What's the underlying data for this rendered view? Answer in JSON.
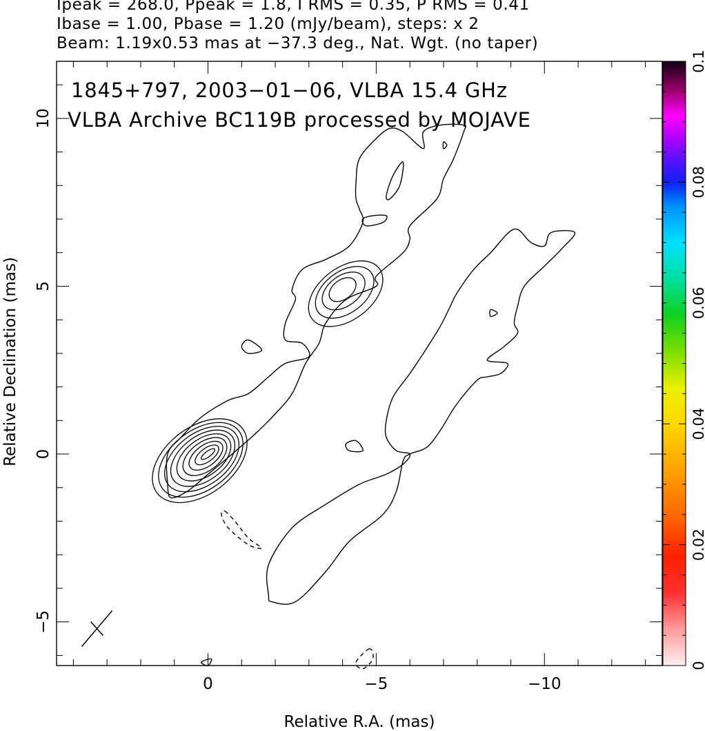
{
  "header": {
    "line1": "Ipeak = 268.0, Ppeak = 1.8, I RMS = 0.35, P RMS = 0.41",
    "line2": "Ibase = 1.00, Pbase = 1.20 (mJy/beam), steps: x 2",
    "line3": "Beam: 1.19x0.53 mas at −37.3 deg., Nat. Wgt. (no taper)"
  },
  "chart_data": {
    "type": "contour",
    "title_line1": "1845+797, 2003−01−06, VLBA 15.4 GHz",
    "title_line2": "VLBA Archive BC119B processed by MOJAVE",
    "xlabel": "Relative R.A. (mas)",
    "ylabel": "Relative Declination (mas)",
    "xlim": [
      4.5,
      -13.5
    ],
    "ylim": [
      -6.3,
      11.7
    ],
    "x_ticks": [
      0,
      -5,
      -10
    ],
    "x_tick_labels": [
      "0",
      "−5",
      "−10"
    ],
    "y_ticks": [
      -5,
      0,
      5,
      10
    ],
    "y_tick_labels": [
      "−5",
      "0",
      "5",
      "10"
    ],
    "colorbar": {
      "range": [
        0,
        0.1
      ],
      "ticks": [
        0,
        0.02,
        0.04,
        0.06,
        0.08,
        0.1
      ],
      "tick_labels": [
        "0",
        "0.02",
        "0.04",
        "0.06",
        "0.08",
        "0.1"
      ]
    },
    "beam": {
      "major_mas": 1.19,
      "minor_mas": 0.53,
      "pa_deg": -37.3,
      "center": [
        3.3,
        -5.2
      ]
    },
    "core": {
      "ra": 0,
      "dec": 0,
      "peak_mJy": 268.0,
      "n_contours": 9
    },
    "knot": {
      "ra": -4.0,
      "dec": 4.9,
      "n_contours": 4
    },
    "contours": [
      {
        "name": "jet-main",
        "closed": true,
        "pts": [
          [
            1.2,
            -0.9
          ],
          [
            1.1,
            -1.3
          ],
          [
            0.6,
            -1.1
          ],
          [
            0,
            -0.6
          ],
          [
            -0.6,
            -0.1
          ],
          [
            -1.4,
            0.6
          ],
          [
            -2.0,
            1.2
          ],
          [
            -2.5,
            1.8
          ],
          [
            -2.9,
            2.7
          ],
          [
            -3.3,
            3.3
          ],
          [
            -3.5,
            3.9
          ],
          [
            -4.1,
            4.6
          ],
          [
            -5.0,
            5.0
          ],
          [
            -5.0,
            5.3
          ],
          [
            -5.8,
            6.0
          ],
          [
            -6.0,
            6.4
          ],
          [
            -6.0,
            6.8
          ],
          [
            -6.8,
            7.6
          ],
          [
            -7.0,
            8.2
          ],
          [
            -7.3,
            8.8
          ],
          [
            -7.6,
            9.6
          ],
          [
            -7.6,
            9.8
          ],
          [
            -6.9,
            9.8
          ],
          [
            -6.4,
            9.6
          ],
          [
            -6.4,
            9.1
          ],
          [
            -5.8,
            9.6
          ],
          [
            -5.4,
            9.7
          ],
          [
            -5.0,
            9.4
          ],
          [
            -4.5,
            8.8
          ],
          [
            -4.4,
            8.1
          ],
          [
            -4.4,
            7.6
          ],
          [
            -4.5,
            7.3
          ],
          [
            -4.6,
            6.9
          ],
          [
            -4.2,
            6.2
          ],
          [
            -3.5,
            5.8
          ],
          [
            -2.8,
            5.5
          ],
          [
            -2.5,
            4.9
          ],
          [
            -2.6,
            4.6
          ],
          [
            -2.3,
            3.9
          ],
          [
            -2.3,
            3.4
          ],
          [
            -2.8,
            3.3
          ],
          [
            -3.0,
            2.9
          ],
          [
            -2.3,
            2.7
          ],
          [
            -1.8,
            2.3
          ],
          [
            -1.2,
            1.8
          ],
          [
            -0.6,
            1.6
          ],
          [
            0.2,
            1.1
          ],
          [
            0.8,
            0.5
          ],
          [
            1.2,
            0
          ]
        ]
      },
      {
        "name": "jet-hole-a",
        "closed": true,
        "pts": [
          [
            -5.3,
            7.7
          ],
          [
            -5.5,
            8.3
          ],
          [
            -5.8,
            8.7
          ],
          [
            -5.7,
            8.0
          ],
          [
            -5.4,
            7.6
          ]
        ]
      },
      {
        "name": "jet-hole-b",
        "closed": true,
        "pts": [
          [
            -4.7,
            6.8
          ],
          [
            -5.2,
            6.9
          ],
          [
            -5.3,
            7.1
          ],
          [
            -4.9,
            7.1
          ],
          [
            -4.6,
            7.0
          ]
        ]
      },
      {
        "name": "jet-hole-c",
        "closed": true,
        "pts": [
          [
            -7.0,
            9.1
          ],
          [
            -7.1,
            9.2
          ],
          [
            -7.0,
            9.3
          ]
        ]
      },
      {
        "name": "lobe-west",
        "closed": true,
        "pts": [
          [
            -1.8,
            -4.2
          ],
          [
            -1.8,
            -3.3
          ],
          [
            -2.5,
            -2.2
          ],
          [
            -3.5,
            -1.5
          ],
          [
            -4.5,
            -0.9
          ],
          [
            -5.3,
            -0.6
          ],
          [
            -5.8,
            -0.3
          ],
          [
            -6.0,
            0.0
          ],
          [
            -5.6,
            0.1
          ],
          [
            -5.3,
            0.5
          ],
          [
            -5.3,
            1.0
          ],
          [
            -5.5,
            1.7
          ],
          [
            -6.0,
            2.4
          ],
          [
            -6.4,
            3.0
          ],
          [
            -6.9,
            3.8
          ],
          [
            -7.2,
            4.4
          ],
          [
            -7.4,
            4.8
          ],
          [
            -7.9,
            5.5
          ],
          [
            -8.4,
            6.0
          ],
          [
            -9.1,
            6.7
          ],
          [
            -9.6,
            6.3
          ],
          [
            -10.0,
            6.2
          ],
          [
            -10.2,
            6.6
          ],
          [
            -10.9,
            6.6
          ],
          [
            -10.5,
            6.1
          ],
          [
            -10.0,
            5.6
          ],
          [
            -9.4,
            5.0
          ],
          [
            -9.2,
            4.4
          ],
          [
            -9.1,
            3.9
          ],
          [
            -9.2,
            3.6
          ],
          [
            -8.8,
            3.2
          ],
          [
            -8.3,
            2.8
          ],
          [
            -8.9,
            2.7
          ],
          [
            -8.7,
            2.4
          ],
          [
            -8.3,
            2.3
          ],
          [
            -8.0,
            2.2
          ],
          [
            -7.4,
            1.5
          ],
          [
            -6.9,
            0.7
          ],
          [
            -6.5,
            0.2
          ],
          [
            -6.0,
            0.0
          ],
          [
            -5.8,
            -0.2
          ],
          [
            -5.6,
            -1.1
          ],
          [
            -5.2,
            -1.8
          ],
          [
            -4.2,
            -2.6
          ],
          [
            -3.5,
            -3.5
          ],
          [
            -2.6,
            -4.4
          ],
          [
            -1.9,
            -4.4
          ]
        ]
      },
      {
        "name": "islet-1",
        "closed": true,
        "pts": [
          [
            -4.4,
            0.4
          ],
          [
            -4.6,
            0.1
          ],
          [
            -4.2,
            0.1
          ],
          [
            -4.1,
            0.3
          ]
        ]
      },
      {
        "name": "islet-2",
        "closed": true,
        "pts": [
          [
            -1.2,
            3.4
          ],
          [
            -1.6,
            3.1
          ],
          [
            -1.2,
            3.0
          ],
          [
            -1.0,
            3.2
          ]
        ]
      },
      {
        "name": "islet-3",
        "closed": true,
        "pts": [
          [
            -8.4,
            4.1
          ],
          [
            -8.6,
            4.2
          ],
          [
            -8.4,
            4.3
          ]
        ]
      },
      {
        "name": "blob-neg-1",
        "closed": true,
        "pts": [
          [
            -0.5,
            -1.7
          ],
          [
            -0.8,
            -2.0
          ],
          [
            -1.2,
            -2.5
          ],
          [
            -1.6,
            -2.8
          ],
          [
            -1.2,
            -2.7
          ],
          [
            -0.6,
            -2.2
          ],
          [
            -0.4,
            -1.8
          ]
        ]
      },
      {
        "name": "blob-neg-2",
        "closed": true,
        "pts": [
          [
            -4.8,
            -5.8
          ],
          [
            -4.4,
            -6.2
          ],
          [
            -4.6,
            -6.4
          ],
          [
            -4.9,
            -6.1
          ]
        ]
      },
      {
        "name": "blob-bottom",
        "closed": true,
        "pts": [
          [
            0.2,
            -6.2
          ],
          [
            -0.1,
            -6.1
          ],
          [
            0.0,
            -6.3
          ]
        ]
      }
    ]
  }
}
